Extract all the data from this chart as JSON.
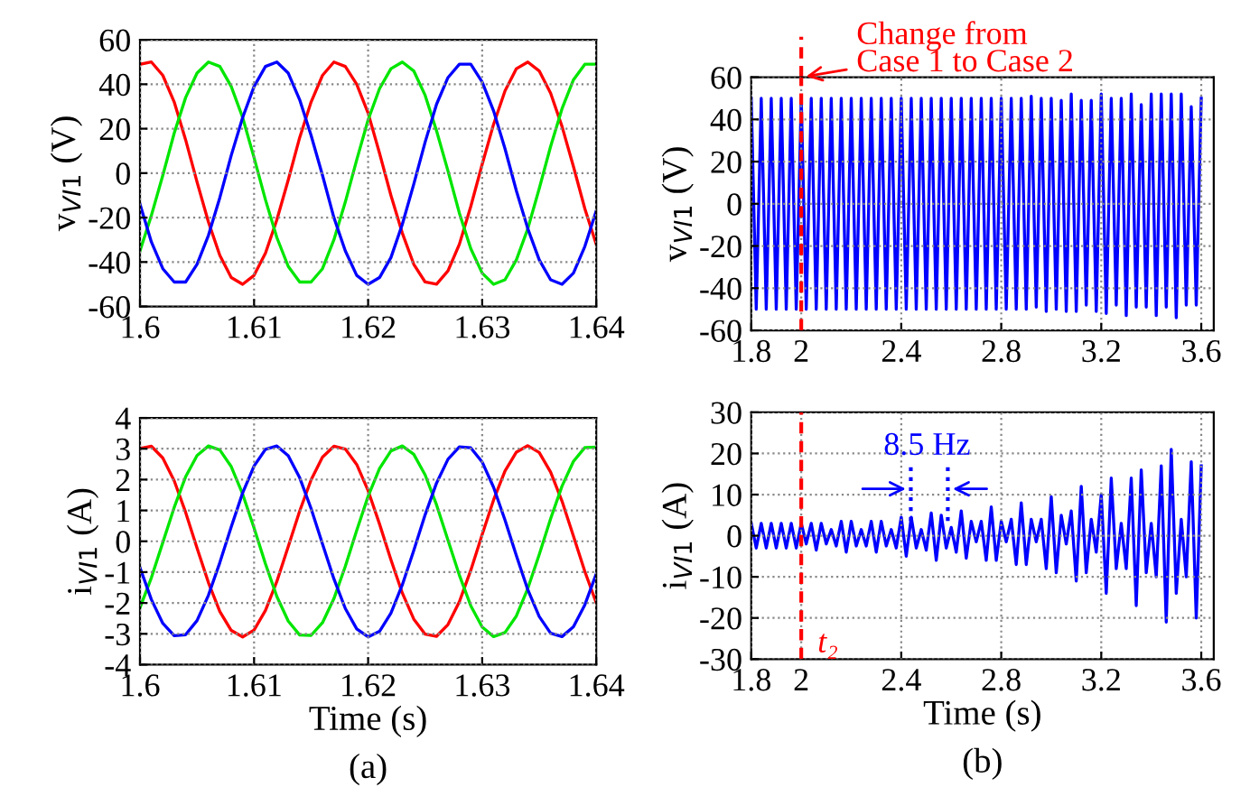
{
  "chart_data": [
    {
      "type": "line",
      "ylabel": "v$_{VI1}$ (V)",
      "xlim": [
        1.6,
        1.64
      ],
      "xticks": [
        1.6,
        1.61,
        1.62,
        1.63,
        1.64
      ],
      "ylim": [
        -60,
        60
      ],
      "yticks": [
        -60,
        -40,
        -20,
        0,
        20,
        40,
        60
      ],
      "grid": true,
      "x": [
        1.6,
        1.601,
        1.602,
        1.603,
        1.604,
        1.605,
        1.606,
        1.607,
        1.608,
        1.609,
        1.61,
        1.611,
        1.612,
        1.613,
        1.614,
        1.615,
        1.616,
        1.617,
        1.618,
        1.619,
        1.62,
        1.621,
        1.622,
        1.623,
        1.624,
        1.625,
        1.626,
        1.627,
        1.628,
        1.629,
        1.63,
        1.631,
        1.632,
        1.633,
        1.634,
        1.635,
        1.636,
        1.637,
        1.638,
        1.639,
        1.64
      ],
      "series": [
        {
          "color": "#ff0000",
          "values": [
            49,
            50,
            44,
            32,
            15,
            -4,
            -22,
            -37,
            -47,
            -50,
            -46,
            -36,
            -21,
            -3,
            16,
            32,
            44,
            50,
            48,
            40,
            27,
            9,
            -10,
            -27,
            -41,
            -49,
            -50,
            -44,
            -32,
            -15,
            4,
            22,
            37,
            47,
            50,
            46,
            36,
            21,
            3,
            -16,
            -32
          ]
        },
        {
          "color": "#00e600",
          "values": [
            -35,
            -19,
            -1,
            18,
            34,
            45,
            50,
            48,
            39,
            25,
            7,
            -12,
            -29,
            -42,
            -49,
            -49,
            -43,
            -30,
            -13,
            6,
            24,
            38,
            47,
            50,
            46,
            35,
            19,
            1,
            -18,
            -34,
            -45,
            -50,
            -48,
            -39,
            -25,
            -7,
            12,
            29,
            42,
            49,
            49
          ]
        },
        {
          "color": "#0000ff",
          "values": [
            -14,
            -31,
            -43,
            -49,
            -49,
            -41,
            -28,
            -11,
            8,
            25,
            39,
            48,
            50,
            45,
            33,
            17,
            -1,
            -20,
            -35,
            -46,
            -50,
            -47,
            -38,
            -23,
            -5,
            14,
            31,
            43,
            49,
            49,
            41,
            28,
            11,
            -8,
            -25,
            -39,
            -48,
            -50,
            -45,
            -33,
            -17
          ]
        }
      ]
    },
    {
      "type": "line",
      "ylabel": "v$_{VI1}$ (V)",
      "xlim": [
        1.8,
        3.65
      ],
      "xticks": [
        1.8,
        2,
        2.4,
        2.8,
        3.2,
        3.6
      ],
      "ylim": [
        -60,
        60
      ],
      "yticks": [
        -60,
        -40,
        -20,
        0,
        20,
        40,
        60
      ],
      "grid": true,
      "ref_lines": [
        {
          "axis": "x",
          "value": 2,
          "color": "#ff0000",
          "line_style": "dashed"
        }
      ],
      "annotations": [
        {
          "text": "Change from\nCase 1 to Case 2",
          "x": 2,
          "y": 60
        }
      ],
      "x": [
        1.8,
        1.82,
        1.84,
        1.86,
        1.88,
        1.9,
        1.92,
        1.94,
        1.96,
        1.98,
        2.0,
        2.02,
        2.04,
        2.06,
        2.08,
        2.1,
        2.12,
        2.14,
        2.16,
        2.18,
        2.2,
        2.22,
        2.24,
        2.26,
        2.28,
        2.3,
        2.32,
        2.34,
        2.36,
        2.38,
        2.4,
        2.42,
        2.44,
        2.46,
        2.48,
        2.5,
        2.52,
        2.54,
        2.56,
        2.58,
        2.6,
        2.62,
        2.64,
        2.66,
        2.68,
        2.7,
        2.72,
        2.74,
        2.76,
        2.78,
        2.8,
        2.82,
        2.84,
        2.86,
        2.88,
        2.9,
        2.92,
        2.94,
        2.96,
        2.98,
        3.0,
        3.02,
        3.04,
        3.06,
        3.08,
        3.1,
        3.12,
        3.14,
        3.16,
        3.18,
        3.2,
        3.22,
        3.24,
        3.26,
        3.28,
        3.3,
        3.32,
        3.34,
        3.36,
        3.38,
        3.4,
        3.42,
        3.44,
        3.46,
        3.48,
        3.5,
        3.52,
        3.54,
        3.56,
        3.58,
        3.6
      ],
      "series": [
        {
          "color": "#0000ff",
          "values": [
            50,
            -50,
            50,
            -50,
            50,
            -50,
            50,
            -50,
            50,
            -50,
            50,
            -50,
            50,
            -50,
            50,
            -50,
            50,
            -50,
            50,
            -50,
            50,
            -50,
            50,
            -50,
            50,
            -50,
            50,
            -50,
            50,
            -50,
            50,
            -50,
            50,
            -50,
            50,
            -50,
            50,
            -50,
            50,
            -50,
            50,
            -50,
            50,
            -50,
            50,
            -50,
            50,
            -50,
            50,
            -50,
            50,
            -50,
            50,
            -50,
            50,
            -50,
            51,
            -49,
            50,
            -51,
            50,
            -50,
            49,
            -51,
            52,
            -51,
            49,
            -48,
            49,
            -51,
            52,
            -52,
            50,
            -48,
            50,
            -53,
            52,
            -49,
            47,
            -49,
            52,
            -53,
            52,
            -49,
            52,
            -54,
            52,
            -48,
            46,
            -48,
            50
          ]
        }
      ]
    },
    {
      "type": "line",
      "ylabel": "i$_{VI1}$ (A)",
      "xlabel": "Time (s)",
      "xlim": [
        1.6,
        1.64
      ],
      "xticks": [
        1.6,
        1.61,
        1.62,
        1.63,
        1.64
      ],
      "ylim": [
        -4,
        4
      ],
      "yticks": [
        -4,
        -3,
        -2,
        -1,
        0,
        1,
        2,
        3,
        4
      ],
      "grid": true,
      "annotations": [
        "(a)"
      ],
      "x": [
        1.6,
        1.601,
        1.602,
        1.603,
        1.604,
        1.605,
        1.606,
        1.607,
        1.608,
        1.609,
        1.61,
        1.611,
        1.612,
        1.613,
        1.614,
        1.615,
        1.616,
        1.617,
        1.618,
        1.619,
        1.62,
        1.621,
        1.622,
        1.623,
        1.624,
        1.625,
        1.626,
        1.627,
        1.628,
        1.629,
        1.63,
        1.631,
        1.632,
        1.633,
        1.634,
        1.635,
        1.636,
        1.637,
        1.638,
        1.639,
        1.64
      ],
      "series": [
        {
          "color": "#ff0000",
          "values": [
            3.01,
            3.08,
            2.7,
            1.96,
            0.94,
            -0.22,
            -1.34,
            -2.28,
            -2.89,
            -3.1,
            -2.88,
            -2.24,
            -1.3,
            -0.17,
            0.98,
            1.99,
            2.73,
            3.08,
            2.99,
            2.49,
            1.64,
            0.56,
            -0.6,
            -1.68,
            -2.52,
            -3.01,
            -3.08,
            -2.7,
            -1.96,
            -0.94,
            0.22,
            1.34,
            2.28,
            2.89,
            3.1,
            2.88,
            2.24,
            1.3,
            0.17,
            -0.98,
            -1.99
          ]
        },
        {
          "color": "#00e600",
          "values": [
            -2.15,
            -1.18,
            -0.04,
            1.1,
            2.09,
            2.78,
            3.09,
            2.96,
            2.42,
            1.53,
            0.43,
            -0.73,
            -1.79,
            -2.59,
            -3.04,
            -3.05,
            -2.64,
            -1.86,
            -0.81,
            0.35,
            1.46,
            2.36,
            2.93,
            3.09,
            2.82,
            2.15,
            1.18,
            0.04,
            -1.1,
            -2.09,
            -2.78,
            -3.09,
            -2.96,
            -2.42,
            -1.53,
            -0.43,
            0.73,
            1.79,
            2.59,
            3.04,
            3.05
          ]
        },
        {
          "color": "#0000ff",
          "values": [
            -0.86,
            -1.89,
            -2.66,
            -3.06,
            -3.03,
            -2.57,
            -1.75,
            -0.69,
            0.47,
            1.57,
            2.44,
            2.98,
            3.09,
            2.77,
            2.06,
            1.06,
            -0.09,
            -1.22,
            -2.18,
            -2.84,
            -3.1,
            -2.92,
            -2.33,
            -1.41,
            -0.3,
            0.86,
            1.89,
            2.66,
            3.06,
            3.03,
            2.57,
            1.75,
            0.69,
            -0.47,
            -1.57,
            -2.44,
            -2.98,
            -3.09,
            -2.77,
            -2.06,
            -1.06
          ]
        }
      ]
    },
    {
      "type": "line",
      "ylabel": "i$_{VI1}$ (A)",
      "xlabel": "Time (s)",
      "xlim": [
        1.8,
        3.65
      ],
      "xticks": [
        1.8,
        2,
        2.4,
        2.8,
        3.2,
        3.6
      ],
      "ylim": [
        -30,
        30
      ],
      "yticks": [
        -30,
        -20,
        -10,
        0,
        10,
        20,
        30
      ],
      "grid": true,
      "ref_lines": [
        {
          "axis": "x",
          "value": 2,
          "label": "t₂",
          "color": "#ff0000",
          "line_style": "dashed"
        }
      ],
      "annotations": [
        "8.5 Hz",
        "(b)"
      ],
      "x": [
        1.8,
        1.82,
        1.84,
        1.86,
        1.88,
        1.9,
        1.92,
        1.94,
        1.96,
        1.98,
        2.0,
        2.02,
        2.04,
        2.06,
        2.08,
        2.1,
        2.12,
        2.14,
        2.16,
        2.18,
        2.2,
        2.22,
        2.24,
        2.26,
        2.28,
        2.3,
        2.32,
        2.34,
        2.36,
        2.38,
        2.4,
        2.42,
        2.44,
        2.46,
        2.48,
        2.5,
        2.52,
        2.54,
        2.56,
        2.58,
        2.6,
        2.62,
        2.64,
        2.66,
        2.68,
        2.7,
        2.72,
        2.74,
        2.76,
        2.78,
        2.8,
        2.82,
        2.84,
        2.86,
        2.88,
        2.9,
        2.92,
        2.94,
        2.96,
        2.98,
        3.0,
        3.02,
        3.04,
        3.06,
        3.08,
        3.1,
        3.12,
        3.14,
        3.16,
        3.18,
        3.2,
        3.22,
        3.24,
        3.26,
        3.28,
        3.3,
        3.32,
        3.34,
        3.36,
        3.38,
        3.4,
        3.42,
        3.44,
        3.46,
        3.48,
        3.5,
        3.52,
        3.54,
        3.56,
        3.58,
        3.6
      ],
      "series": [
        {
          "color": "#0000ff",
          "values": [
            3,
            -3,
            3,
            -3,
            3,
            -3,
            3,
            -3,
            3,
            -3,
            3,
            -2,
            3,
            -3.5,
            3,
            -2,
            1.5,
            -2.5,
            3.5,
            -4,
            3.5,
            -2.5,
            1.5,
            -2.5,
            3.5,
            -4,
            3.5,
            -2.5,
            1.5,
            -3,
            4.5,
            -5,
            4.5,
            -3,
            1.5,
            -3.5,
            5.5,
            -6,
            5,
            -3,
            2,
            -4,
            6,
            -5.5,
            3.5,
            -1.5,
            3.5,
            -6,
            7,
            -6,
            3.5,
            -1.5,
            4,
            -7,
            8,
            -7,
            4,
            -1.5,
            4,
            -8,
            9.5,
            -9,
            5,
            -2,
            6,
            -11,
            12,
            -9,
            4,
            -4,
            10,
            -14,
            14,
            -8,
            3,
            -8,
            14,
            -17,
            16,
            -9,
            3,
            -10,
            17,
            -21,
            21,
            -14,
            4,
            -10,
            18,
            -20,
            17
          ]
        }
      ]
    }
  ]
}
